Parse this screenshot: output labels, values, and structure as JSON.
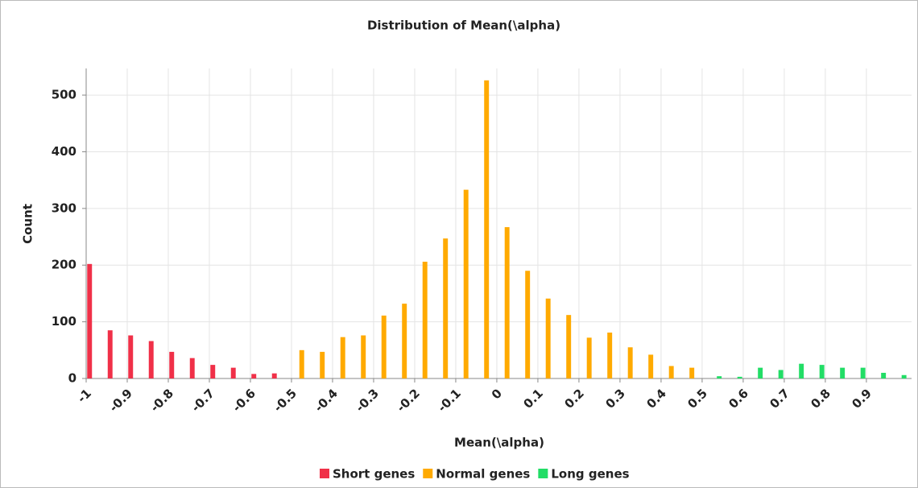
{
  "chart_data": {
    "type": "histogram",
    "title": "Distribution of Mean(\\alpha)",
    "xlabel": "Mean(\\alpha)",
    "ylabel": "Count",
    "bins": [
      -1,
      -0.95,
      -0.9,
      -0.85,
      -0.8,
      -0.75,
      -0.7,
      -0.65,
      -0.6,
      -0.55,
      -0.5,
      -0.45,
      -0.4,
      -0.35,
      -0.3,
      -0.25,
      -0.2,
      -0.15,
      -0.1,
      -0.05,
      0,
      0.05,
      0.1,
      0.15,
      0.2,
      0.25,
      0.3,
      0.35,
      0.4,
      0.45,
      0.5,
      0.55,
      0.6,
      0.65,
      0.7,
      0.75,
      0.8,
      0.85,
      0.9,
      0.95,
      1
    ],
    "series": [
      {
        "name": "Short genes",
        "color": "#f03048",
        "values": [
          202,
          85,
          76,
          66,
          47,
          36,
          24,
          19,
          8,
          9,
          null,
          null,
          null,
          null,
          null,
          null,
          null,
          null,
          null,
          null,
          null,
          null,
          null,
          null,
          null,
          null,
          null,
          null,
          null,
          null,
          null,
          null,
          null,
          null,
          null,
          null,
          null,
          null,
          null,
          null
        ]
      },
      {
        "name": "Normal genes",
        "color": "#ffaa00",
        "values": [
          null,
          null,
          null,
          null,
          null,
          null,
          null,
          null,
          null,
          null,
          50,
          47,
          73,
          76,
          111,
          132,
          206,
          247,
          333,
          526,
          267,
          190,
          141,
          112,
          72,
          81,
          55,
          42,
          22,
          19,
          null,
          null,
          null,
          null,
          null,
          null,
          null,
          null,
          null,
          null
        ]
      },
      {
        "name": "Long genes",
        "color": "#22dd66",
        "values": [
          null,
          null,
          null,
          null,
          null,
          null,
          null,
          null,
          null,
          null,
          null,
          null,
          null,
          null,
          null,
          null,
          null,
          null,
          null,
          null,
          null,
          null,
          null,
          null,
          null,
          null,
          null,
          null,
          null,
          null,
          4,
          3,
          19,
          15,
          26,
          24,
          19,
          19,
          10,
          6
        ]
      }
    ],
    "xlim": [
      -1,
      1.01
    ],
    "xticks": [
      -1,
      -0.9,
      -0.8,
      -0.7,
      -0.6,
      -0.5,
      -0.4,
      -0.3,
      -0.2,
      -0.1,
      0,
      0.1,
      0.2,
      0.3,
      0.4,
      0.5,
      0.6,
      0.7,
      0.8,
      0.9
    ],
    "ylim": [
      0,
      547
    ],
    "yticks": [
      0,
      100,
      200,
      300,
      400,
      500
    ],
    "grid": true
  }
}
